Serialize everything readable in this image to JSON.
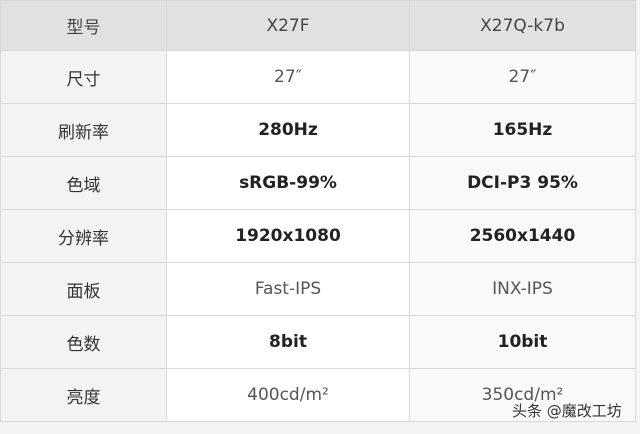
{
  "header": {
    "label": "型号",
    "col1": "X27F",
    "col2": "X27Q-k7b"
  },
  "rows": [
    {
      "label": "尺寸",
      "col1": "27″",
      "col2": "27″",
      "bold": false
    },
    {
      "label": "刷新率",
      "col1": "280Hz",
      "col2": "165Hz",
      "bold": true
    },
    {
      "label": "色域",
      "col1": "sRGB-99%",
      "col2": "DCI-P3 95%",
      "bold": true
    },
    {
      "label": "分辨率",
      "col1": "1920x1080",
      "col2": "2560x1440",
      "bold": true
    },
    {
      "label": "面板",
      "col1": "Fast-IPS",
      "col2": "INX-IPS",
      "bold": false
    },
    {
      "label": "色数",
      "col1": "8bit",
      "col2": "10bit",
      "bold": true
    },
    {
      "label": "亮度",
      "col1": "400cd/m²",
      "col2": "350cd/m²",
      "bold": false
    }
  ],
  "watermark": "头条 @魔改工坊"
}
